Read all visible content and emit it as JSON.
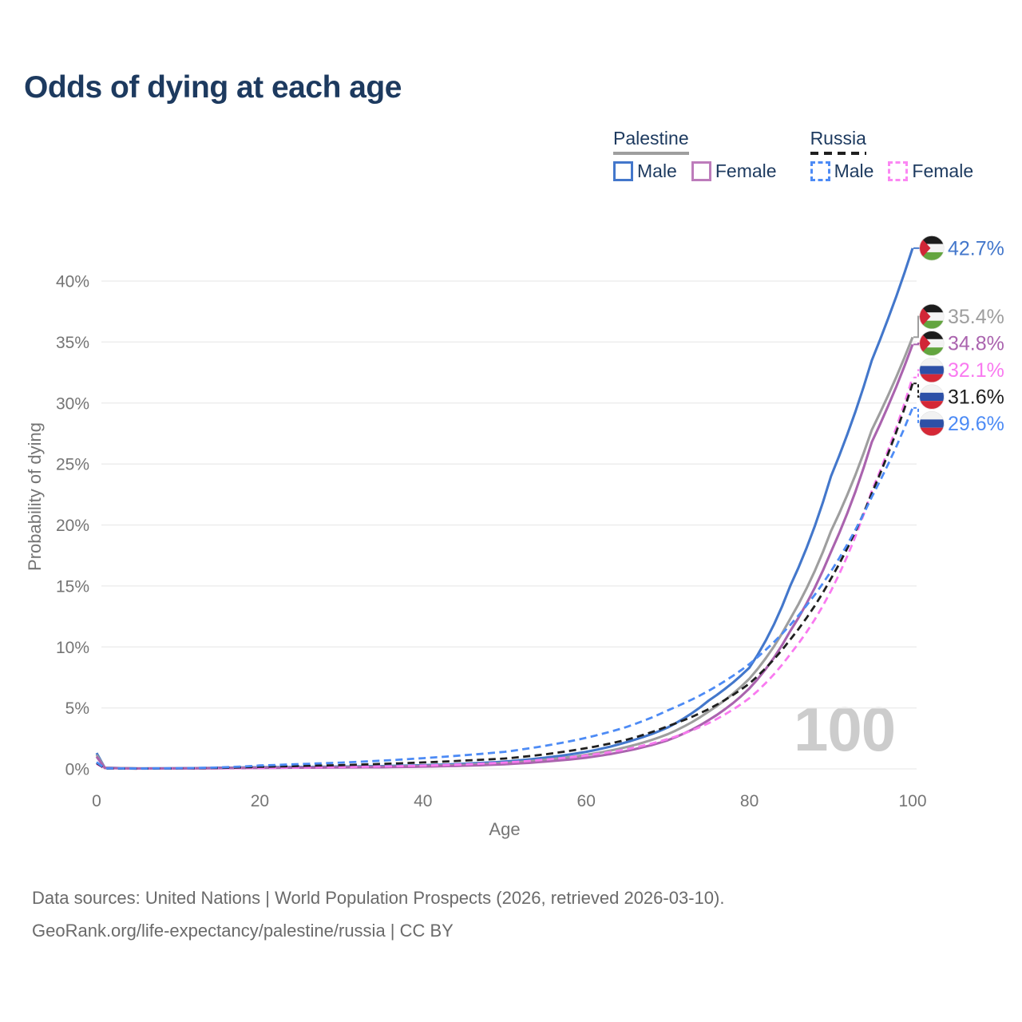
{
  "title": "Odds of dying at each age",
  "watermark": "100",
  "legend": {
    "groups": [
      {
        "country": "Palestine",
        "line_color": "#9e9e9e",
        "dash": false,
        "items": [
          {
            "label": "Male",
            "color": "#4377cb",
            "dash": false
          },
          {
            "label": "Female",
            "color": "#bd7cbb",
            "dash": false
          }
        ]
      },
      {
        "country": "Russia",
        "line_color": "#1f1f1f",
        "dash": true,
        "items": [
          {
            "label": "Male",
            "color": "#4d8bf5",
            "dash": true
          },
          {
            "label": "Female",
            "color": "#fb87f3",
            "dash": true
          }
        ]
      }
    ]
  },
  "footer": {
    "line1": "Data sources: United Nations | World Population Prospects (2026, retrieved 2026-03-10).",
    "line2": "GeoRank.org/life-expectancy/palestine/russia | CC BY"
  },
  "chart_data": {
    "type": "line",
    "title": "Odds of dying at each age",
    "xlabel": "Age",
    "ylabel": "Probability of dying",
    "xlim": [
      0,
      100
    ],
    "ylim": [
      0,
      43
    ],
    "x_ticks": [
      0,
      20,
      40,
      60,
      80,
      100
    ],
    "y_ticks": [
      0,
      5,
      10,
      15,
      20,
      25,
      30,
      35,
      40
    ],
    "y_tick_suffix": "%",
    "grid": true,
    "legend_position": "top-right",
    "ages": [
      0,
      1,
      5,
      10,
      15,
      20,
      25,
      30,
      35,
      40,
      45,
      50,
      55,
      60,
      65,
      70,
      75,
      80,
      85,
      90,
      95,
      100
    ],
    "series": [
      {
        "name": "Palestine Male",
        "color": "#4377cb",
        "dash": false,
        "flag": "palestine",
        "end_label": "42.7%",
        "end_value": 42.7,
        "values": [
          1.3,
          0.1,
          0.04,
          0.05,
          0.09,
          0.14,
          0.16,
          0.19,
          0.23,
          0.3,
          0.42,
          0.6,
          0.92,
          1.4,
          2.2,
          3.4,
          5.6,
          8.3,
          15.0,
          24.0,
          33.5,
          42.7
        ]
      },
      {
        "name": "Palestine Both sexes",
        "color": "#9e9e9e",
        "dash": false,
        "flag": "palestine",
        "end_label": "35.4%",
        "end_value": 35.4,
        "values": [
          1.15,
          0.09,
          0.04,
          0.04,
          0.07,
          0.11,
          0.13,
          0.15,
          0.18,
          0.24,
          0.33,
          0.48,
          0.75,
          1.15,
          1.8,
          2.85,
          4.7,
          7.4,
          12.3,
          19.5,
          27.8,
          35.4
        ]
      },
      {
        "name": "Palestine Female",
        "color": "#aa63ae",
        "dash": false,
        "flag": "palestine",
        "end_label": "34.8%",
        "end_value": 34.8,
        "values": [
          1.0,
          0.08,
          0.03,
          0.04,
          0.06,
          0.08,
          0.1,
          0.12,
          0.14,
          0.19,
          0.26,
          0.38,
          0.6,
          0.92,
          1.48,
          2.35,
          4.0,
          6.6,
          11.3,
          17.8,
          26.8,
          34.8
        ]
      },
      {
        "name": "Russia Female",
        "color": "#f97af0",
        "dash": true,
        "flag": "russia",
        "end_label": "32.1%",
        "end_value": 32.1,
        "values": [
          0.42,
          0.04,
          0.02,
          0.03,
          0.05,
          0.08,
          0.11,
          0.15,
          0.2,
          0.27,
          0.37,
          0.52,
          0.76,
          1.1,
          1.62,
          2.45,
          3.75,
          5.8,
          9.4,
          14.6,
          22.8,
          32.1
        ]
      },
      {
        "name": "Russia Both sexes",
        "color": "#1f1f1f",
        "dash": true,
        "flag": "russia",
        "end_label": "31.6%",
        "end_value": 31.6,
        "values": [
          0.48,
          0.04,
          0.02,
          0.04,
          0.08,
          0.17,
          0.24,
          0.31,
          0.41,
          0.53,
          0.68,
          0.85,
          1.2,
          1.7,
          2.4,
          3.5,
          4.9,
          7.0,
          10.6,
          15.6,
          22.6,
          31.6
        ]
      },
      {
        "name": "Russia Male",
        "color": "#4d8bf5",
        "dash": true,
        "flag": "russia",
        "end_label": "29.6%",
        "end_value": 29.6,
        "values": [
          0.55,
          0.05,
          0.03,
          0.05,
          0.12,
          0.28,
          0.4,
          0.52,
          0.68,
          0.88,
          1.12,
          1.4,
          1.9,
          2.55,
          3.45,
          4.8,
          6.4,
          8.6,
          11.8,
          16.2,
          22.3,
          29.6
        ]
      }
    ],
    "flag_colors": {
      "palestine": {
        "black": "#1c1c1c",
        "white": "#f4f4f4",
        "green": "#63a53f",
        "red": "#d12637"
      },
      "russia": {
        "white": "#f2f2f2",
        "blue": "#2d50a7",
        "red": "#d52836"
      }
    }
  }
}
